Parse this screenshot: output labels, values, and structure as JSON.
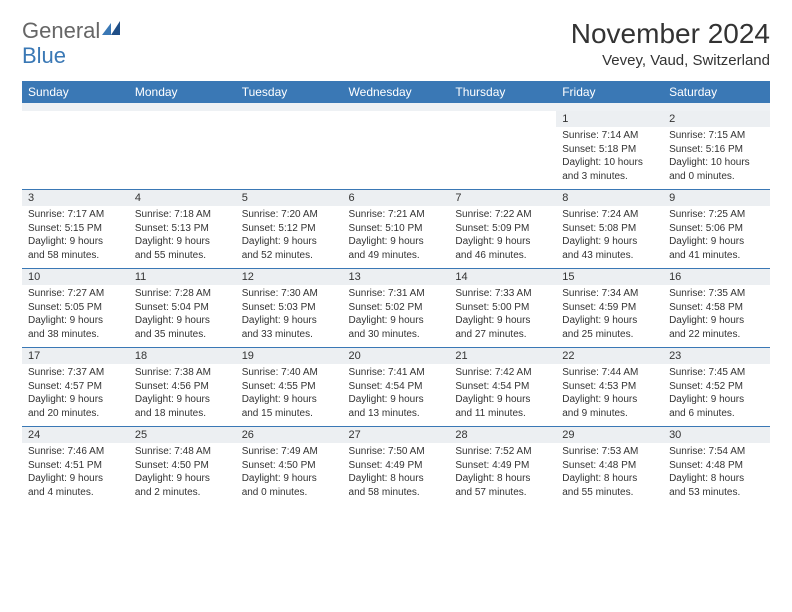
{
  "brand": {
    "part1": "General",
    "part2": "Blue"
  },
  "title": "November 2024",
  "location": "Vevey, Vaud, Switzerland",
  "colors": {
    "header_bg": "#3a78b5",
    "header_fg": "#ffffff",
    "daynum_bg": "#eceff2",
    "rule": "#3a78b5"
  },
  "daynames": [
    "Sunday",
    "Monday",
    "Tuesday",
    "Wednesday",
    "Thursday",
    "Friday",
    "Saturday"
  ],
  "weeks": [
    [
      {
        "n": "",
        "lines": [
          "",
          "",
          "",
          ""
        ]
      },
      {
        "n": "",
        "lines": [
          "",
          "",
          "",
          ""
        ]
      },
      {
        "n": "",
        "lines": [
          "",
          "",
          "",
          ""
        ]
      },
      {
        "n": "",
        "lines": [
          "",
          "",
          "",
          ""
        ]
      },
      {
        "n": "",
        "lines": [
          "",
          "",
          "",
          ""
        ]
      },
      {
        "n": "1",
        "lines": [
          "Sunrise: 7:14 AM",
          "Sunset: 5:18 PM",
          "Daylight: 10 hours",
          "and 3 minutes."
        ]
      },
      {
        "n": "2",
        "lines": [
          "Sunrise: 7:15 AM",
          "Sunset: 5:16 PM",
          "Daylight: 10 hours",
          "and 0 minutes."
        ]
      }
    ],
    [
      {
        "n": "3",
        "lines": [
          "Sunrise: 7:17 AM",
          "Sunset: 5:15 PM",
          "Daylight: 9 hours",
          "and 58 minutes."
        ]
      },
      {
        "n": "4",
        "lines": [
          "Sunrise: 7:18 AM",
          "Sunset: 5:13 PM",
          "Daylight: 9 hours",
          "and 55 minutes."
        ]
      },
      {
        "n": "5",
        "lines": [
          "Sunrise: 7:20 AM",
          "Sunset: 5:12 PM",
          "Daylight: 9 hours",
          "and 52 minutes."
        ]
      },
      {
        "n": "6",
        "lines": [
          "Sunrise: 7:21 AM",
          "Sunset: 5:10 PM",
          "Daylight: 9 hours",
          "and 49 minutes."
        ]
      },
      {
        "n": "7",
        "lines": [
          "Sunrise: 7:22 AM",
          "Sunset: 5:09 PM",
          "Daylight: 9 hours",
          "and 46 minutes."
        ]
      },
      {
        "n": "8",
        "lines": [
          "Sunrise: 7:24 AM",
          "Sunset: 5:08 PM",
          "Daylight: 9 hours",
          "and 43 minutes."
        ]
      },
      {
        "n": "9",
        "lines": [
          "Sunrise: 7:25 AM",
          "Sunset: 5:06 PM",
          "Daylight: 9 hours",
          "and 41 minutes."
        ]
      }
    ],
    [
      {
        "n": "10",
        "lines": [
          "Sunrise: 7:27 AM",
          "Sunset: 5:05 PM",
          "Daylight: 9 hours",
          "and 38 minutes."
        ]
      },
      {
        "n": "11",
        "lines": [
          "Sunrise: 7:28 AM",
          "Sunset: 5:04 PM",
          "Daylight: 9 hours",
          "and 35 minutes."
        ]
      },
      {
        "n": "12",
        "lines": [
          "Sunrise: 7:30 AM",
          "Sunset: 5:03 PM",
          "Daylight: 9 hours",
          "and 33 minutes."
        ]
      },
      {
        "n": "13",
        "lines": [
          "Sunrise: 7:31 AM",
          "Sunset: 5:02 PM",
          "Daylight: 9 hours",
          "and 30 minutes."
        ]
      },
      {
        "n": "14",
        "lines": [
          "Sunrise: 7:33 AM",
          "Sunset: 5:00 PM",
          "Daylight: 9 hours",
          "and 27 minutes."
        ]
      },
      {
        "n": "15",
        "lines": [
          "Sunrise: 7:34 AM",
          "Sunset: 4:59 PM",
          "Daylight: 9 hours",
          "and 25 minutes."
        ]
      },
      {
        "n": "16",
        "lines": [
          "Sunrise: 7:35 AM",
          "Sunset: 4:58 PM",
          "Daylight: 9 hours",
          "and 22 minutes."
        ]
      }
    ],
    [
      {
        "n": "17",
        "lines": [
          "Sunrise: 7:37 AM",
          "Sunset: 4:57 PM",
          "Daylight: 9 hours",
          "and 20 minutes."
        ]
      },
      {
        "n": "18",
        "lines": [
          "Sunrise: 7:38 AM",
          "Sunset: 4:56 PM",
          "Daylight: 9 hours",
          "and 18 minutes."
        ]
      },
      {
        "n": "19",
        "lines": [
          "Sunrise: 7:40 AM",
          "Sunset: 4:55 PM",
          "Daylight: 9 hours",
          "and 15 minutes."
        ]
      },
      {
        "n": "20",
        "lines": [
          "Sunrise: 7:41 AM",
          "Sunset: 4:54 PM",
          "Daylight: 9 hours",
          "and 13 minutes."
        ]
      },
      {
        "n": "21",
        "lines": [
          "Sunrise: 7:42 AM",
          "Sunset: 4:54 PM",
          "Daylight: 9 hours",
          "and 11 minutes."
        ]
      },
      {
        "n": "22",
        "lines": [
          "Sunrise: 7:44 AM",
          "Sunset: 4:53 PM",
          "Daylight: 9 hours",
          "and 9 minutes."
        ]
      },
      {
        "n": "23",
        "lines": [
          "Sunrise: 7:45 AM",
          "Sunset: 4:52 PM",
          "Daylight: 9 hours",
          "and 6 minutes."
        ]
      }
    ],
    [
      {
        "n": "24",
        "lines": [
          "Sunrise: 7:46 AM",
          "Sunset: 4:51 PM",
          "Daylight: 9 hours",
          "and 4 minutes."
        ]
      },
      {
        "n": "25",
        "lines": [
          "Sunrise: 7:48 AM",
          "Sunset: 4:50 PM",
          "Daylight: 9 hours",
          "and 2 minutes."
        ]
      },
      {
        "n": "26",
        "lines": [
          "Sunrise: 7:49 AM",
          "Sunset: 4:50 PM",
          "Daylight: 9 hours",
          "and 0 minutes."
        ]
      },
      {
        "n": "27",
        "lines": [
          "Sunrise: 7:50 AM",
          "Sunset: 4:49 PM",
          "Daylight: 8 hours",
          "and 58 minutes."
        ]
      },
      {
        "n": "28",
        "lines": [
          "Sunrise: 7:52 AM",
          "Sunset: 4:49 PM",
          "Daylight: 8 hours",
          "and 57 minutes."
        ]
      },
      {
        "n": "29",
        "lines": [
          "Sunrise: 7:53 AM",
          "Sunset: 4:48 PM",
          "Daylight: 8 hours",
          "and 55 minutes."
        ]
      },
      {
        "n": "30",
        "lines": [
          "Sunrise: 7:54 AM",
          "Sunset: 4:48 PM",
          "Daylight: 8 hours",
          "and 53 minutes."
        ]
      }
    ]
  ]
}
